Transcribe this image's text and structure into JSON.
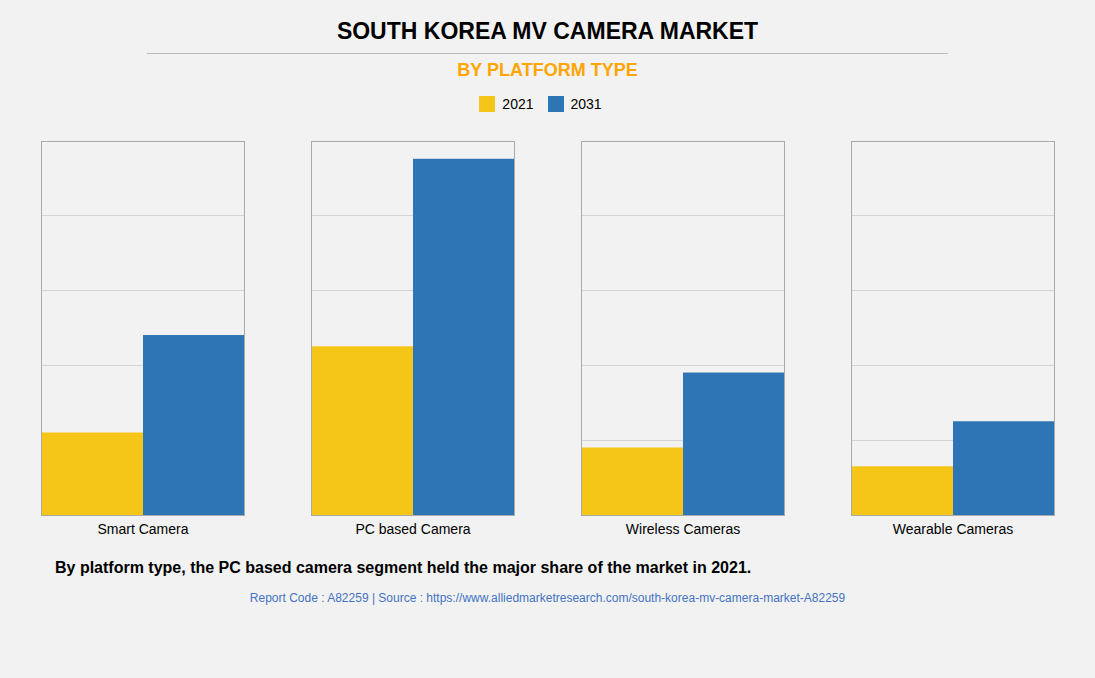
{
  "chart_data": {
    "type": "bar",
    "title": "SOUTH KOREA MV CAMERA MARKET",
    "subtitle": "BY PLATFORM TYPE",
    "categories": [
      "Smart Camera",
      "PC based Camera",
      "Wireless Cameras",
      "Wearable Cameras"
    ],
    "series": [
      {
        "name": "2021",
        "color": "#F5C518",
        "values": [
          2.2,
          4.5,
          1.8,
          1.3
        ]
      },
      {
        "name": "2031",
        "color": "#2E75B6",
        "values": [
          4.8,
          9.5,
          3.8,
          2.5
        ]
      }
    ],
    "ylim": [
      0,
      9.975
    ],
    "yticks": [
      0,
      2,
      4,
      6,
      8
    ],
    "grid": true,
    "tick_labels": "x",
    "legend": "top",
    "footnote": "By platform type, the PC based camera segment held the major share of the market in 2021.",
    "source": "Report Code : A82259  |  Source : https://www.alliedmarketresearch.com/south-korea-mv-camera-market-A82259"
  }
}
